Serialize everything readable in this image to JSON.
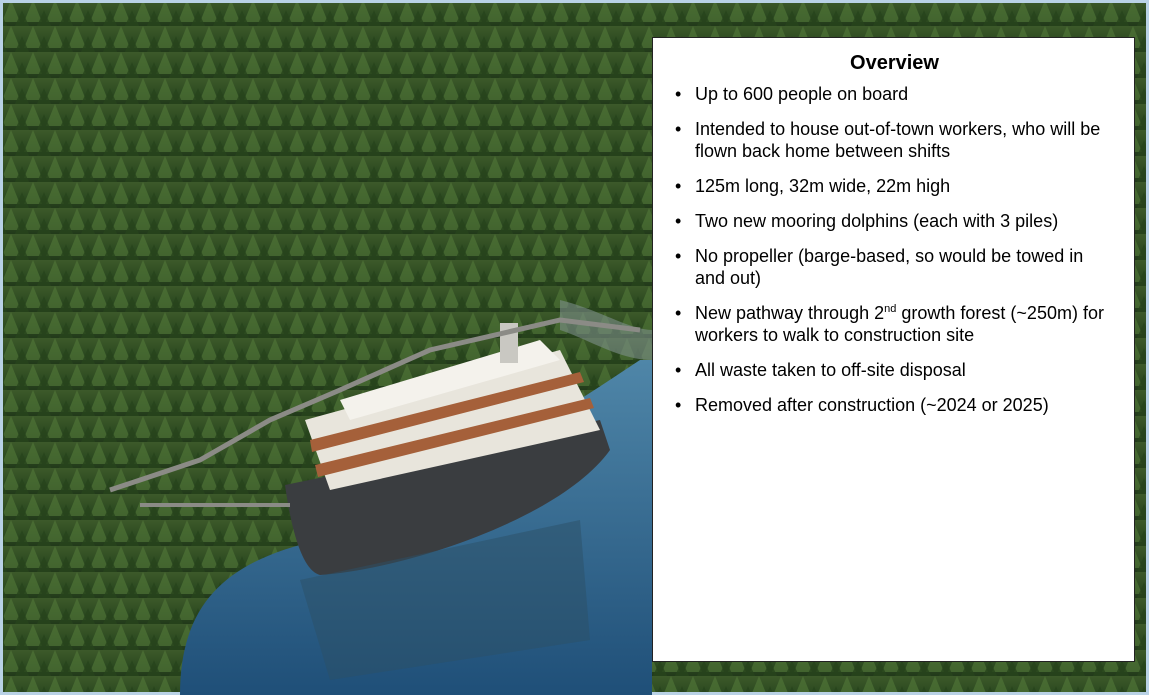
{
  "overview": {
    "title": "Overview",
    "items": [
      "Up to 600 people on board",
      "Intended to house out-of-town workers, who will be flown back home between shifts",
      "125m long, 32m wide, 22m high",
      "Two new mooring dolphins (each with 3 piles)",
      "No propeller (barge-based, so would be towed in and out)",
      {
        "before": "New pathway through 2",
        "sup": "nd",
        "after": " growth forest (~250m) for workers to walk to construction site"
      },
      "All waste taken to off-site disposal",
      "Removed after construction (~2024 or 2025)"
    ]
  }
}
